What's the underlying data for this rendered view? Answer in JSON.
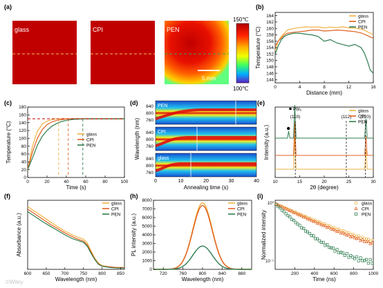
{
  "figure": {
    "panels": [
      {
        "label": "(a)"
      },
      {
        "label": "(b)"
      },
      {
        "label": "(c)"
      },
      {
        "label": "(d)"
      },
      {
        "label": "(e)"
      },
      {
        "label": "(f)"
      },
      {
        "label": "(h)"
      },
      {
        "label": "(i)"
      }
    ],
    "colors": {
      "glass": "#f0b040",
      "CPI": "#e06020",
      "PEN": "#2e7d4f",
      "pbi2_marker": "#000000"
    },
    "thermal": {
      "samples": [
        "glass",
        "CPI",
        "PEN"
      ],
      "colorbar_max": "150℃",
      "colorbar_min": "100℃",
      "scalebar_label": "5 mm"
    },
    "heatmap": {
      "rows": [
        {
          "label": "PEN"
        },
        {
          "label": "CPI"
        },
        {
          "label": "glass"
        }
      ],
      "ylabel": "Wavelength (nm)",
      "xlabel": "Annealing time (s)",
      "yticks": [
        "760",
        "800",
        "840"
      ],
      "xticks": [
        "0",
        "10",
        "20",
        "30",
        "40"
      ]
    },
    "watermark": "©Wiley"
  },
  "chart_data": [
    {
      "panel": "(b)",
      "type": "line",
      "xlabel": "Distance (mm)",
      "ylabel": "Temperature (°C)",
      "xlim": [
        0,
        16
      ],
      "ylim": [
        143,
        165
      ],
      "xticks": [
        0,
        4,
        8,
        12,
        16
      ],
      "yticks": [
        144,
        146,
        148,
        150,
        152,
        154,
        156,
        158,
        160,
        162,
        164
      ],
      "legend": "top-right",
      "x": [
        0,
        0.5,
        1,
        1.5,
        2,
        3,
        4,
        5,
        6,
        7,
        8,
        9,
        10,
        11,
        12,
        13,
        14,
        14.5,
        15,
        15.5,
        16
      ],
      "series": [
        {
          "name": "glass",
          "values": [
            153,
            156,
            157.5,
            158.5,
            159.5,
            160,
            160.3,
            160.5,
            160.4,
            160.5,
            160.2,
            160.4,
            160.3,
            160.5,
            160.2,
            160.1,
            159.8,
            159.5,
            159,
            158.5,
            158
          ]
        },
        {
          "name": "CPI",
          "values": [
            154.5,
            156,
            157,
            158,
            158.5,
            158.8,
            159,
            159.2,
            159.5,
            159.5,
            159.2,
            159.3,
            159.5,
            159.4,
            159.2,
            159,
            158.6,
            158.2,
            157.8,
            157.3,
            157
          ]
        },
        {
          "name": "PEN",
          "values": [
            152,
            154.5,
            156.5,
            157.5,
            158,
            158.5,
            158.5,
            158.2,
            158,
            157.5,
            156,
            156.5,
            155.5,
            155,
            154.5,
            155,
            154,
            152.5,
            150,
            147,
            146
          ]
        }
      ]
    },
    {
      "panel": "(c)",
      "type": "line",
      "xlabel": "Time (s)",
      "ylabel": "Temperature (°C)",
      "xlim": [
        0,
        100
      ],
      "ylim": [
        0,
        180
      ],
      "xticks": [
        0,
        20,
        40,
        60,
        80,
        100
      ],
      "yticks": [
        0,
        20,
        40,
        60,
        80,
        100,
        120,
        140,
        160,
        180
      ],
      "legend": "center-right",
      "reference_y": 150,
      "reference_x": {
        "glass": 32,
        "CPI": 42,
        "PEN": 57
      },
      "x": [
        0,
        5,
        10,
        15,
        20,
        25,
        30,
        35,
        40,
        45,
        50,
        55,
        60,
        70,
        80,
        90,
        100
      ],
      "series": [
        {
          "name": "glass",
          "values": [
            20,
            80,
            118,
            136,
            144,
            148,
            150,
            150,
            150,
            150,
            150,
            150,
            150,
            150,
            150,
            150,
            150
          ]
        },
        {
          "name": "CPI",
          "values": [
            20,
            65,
            100,
            122,
            135,
            142,
            146,
            148,
            149.5,
            150,
            150,
            150,
            150,
            150,
            150,
            150,
            150
          ]
        },
        {
          "name": "PEN",
          "values": [
            20,
            50,
            82,
            105,
            120,
            131,
            138,
            143,
            146,
            148,
            149,
            149.5,
            150,
            150,
            150,
            150,
            150
          ]
        }
      ]
    },
    {
      "panel": "(e)",
      "type": "line",
      "xlabel": "2θ (degree)",
      "ylabel": "Intensity (a.u.)",
      "xlim": [
        10,
        30
      ],
      "xticks": [
        10,
        15,
        20,
        25,
        30
      ],
      "legend": "top-right",
      "legend_marker_label": "PbI₂",
      "peak_labels": [
        {
          "x": 14.1,
          "text": "(110)"
        },
        {
          "x": 24.5,
          "text": "(112)"
        },
        {
          "x": 28.4,
          "text": "(220)"
        }
      ],
      "pbi2_peak": 12.7,
      "series": [
        {
          "name": "glass",
          "offset": 0,
          "peaks": [
            14.1,
            28.4
          ]
        },
        {
          "name": "CPI",
          "offset": 1,
          "peaks": [
            14.1,
            28.4
          ]
        },
        {
          "name": "PEN",
          "offset": 2,
          "peaks": [
            12.7,
            14.1,
            28.4
          ]
        }
      ]
    },
    {
      "panel": "(f)",
      "type": "line",
      "xlabel": "Wavelength (nm)",
      "ylabel": "Absorbance (a.u.)",
      "xlim": [
        600,
        860
      ],
      "xticks": [
        600,
        650,
        700,
        750,
        800,
        850
      ],
      "legend": "top-right",
      "x": [
        600,
        620,
        640,
        660,
        680,
        700,
        720,
        740,
        750,
        760,
        770,
        780,
        790,
        800,
        820,
        840,
        860
      ],
      "series": [
        {
          "name": "glass",
          "values": [
            1.0,
            0.92,
            0.84,
            0.76,
            0.68,
            0.61,
            0.55,
            0.5,
            0.48,
            0.42,
            0.3,
            0.18,
            0.1,
            0.06,
            0.04,
            0.03,
            0.03
          ]
        },
        {
          "name": "CPI",
          "values": [
            0.96,
            0.88,
            0.8,
            0.72,
            0.65,
            0.58,
            0.52,
            0.47,
            0.45,
            0.39,
            0.28,
            0.17,
            0.09,
            0.05,
            0.04,
            0.03,
            0.03
          ]
        },
        {
          "name": "PEN",
          "values": [
            0.92,
            0.84,
            0.76,
            0.69,
            0.62,
            0.55,
            0.49,
            0.45,
            0.43,
            0.37,
            0.26,
            0.16,
            0.08,
            0.05,
            0.03,
            0.02,
            0.02
          ]
        }
      ]
    },
    {
      "panel": "(h)",
      "type": "line",
      "xlabel": "Wavelength (nm)",
      "ylabel": "PL intensity (a.u.)",
      "xlim": [
        700,
        900
      ],
      "ylim": [
        0,
        8000
      ],
      "xticks": [
        720,
        760,
        800,
        840,
        880
      ],
      "yticks": [
        0,
        1000,
        2000,
        3000,
        4000,
        5000,
        6000,
        7000,
        8000
      ],
      "legend": "top-right",
      "peak_center": 800,
      "series": [
        {
          "name": "glass",
          "peak": 7700
        },
        {
          "name": "CPI",
          "peak": 7400
        },
        {
          "name": "PEN",
          "peak": 2700
        }
      ]
    },
    {
      "panel": "(i)",
      "type": "scatter",
      "xlabel": "Time (ns)",
      "ylabel": "Normalized intensity",
      "xlim": [
        0,
        1000
      ],
      "xticks": [
        200,
        400,
        600,
        800,
        1000
      ],
      "y_scale": "log",
      "yticks": [
        "10⁰",
        "10⁻¹"
      ],
      "legend": "top-right",
      "series": [
        {
          "name": "glass",
          "marker": "circle",
          "decay": 0.0022
        },
        {
          "name": "CPI",
          "marker": "triangle",
          "decay": 0.0024
        },
        {
          "name": "PEN",
          "marker": "square",
          "decay": 0.0048
        }
      ]
    }
  ]
}
